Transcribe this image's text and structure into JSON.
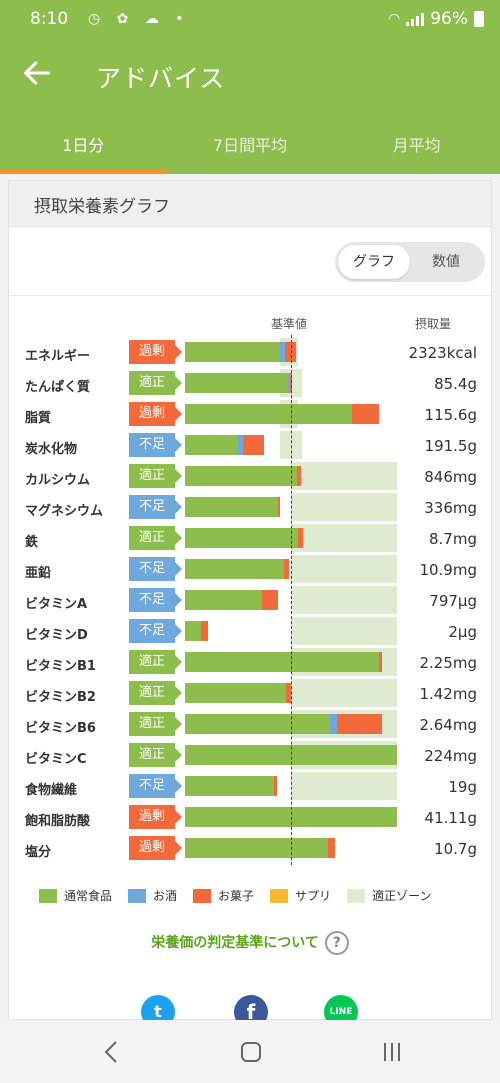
{
  "status_bar": {
    "time": "8:10",
    "battery": "96%"
  },
  "app_bar": {
    "title": "アドバイス"
  },
  "tabs": [
    {
      "label": "1日分",
      "active": true
    },
    {
      "label": "7日間平均",
      "active": false
    },
    {
      "label": "月平均",
      "active": false
    }
  ],
  "card": {
    "title": "摂取栄養素グラフ",
    "toggle": {
      "graph": "グラフ",
      "value": "数値",
      "selected": "graph"
    },
    "header_ref": "基準値",
    "header_amount": "摂取量"
  },
  "colors": {
    "food": "#8dbd4c",
    "drink": "#6fa8dc",
    "snack": "#f26a3c",
    "supplement": "#f7b733",
    "zone": "#dfebd0"
  },
  "nutrients": [
    {
      "name": "エネルギー",
      "status": "過剰",
      "level": "over",
      "amount": "2323kcal",
      "zone": [
        0.9,
        1.07
      ],
      "food": 0.9,
      "drink": 0.05,
      "snack": 0.1
    },
    {
      "name": "たんぱく質",
      "status": "適正",
      "level": "ok",
      "amount": "85.4g",
      "zone": [
        0.9,
        1.1
      ],
      "food": 0.97,
      "drink": 0.02,
      "snack": 0.02
    },
    {
      "name": "脂質",
      "status": "過剰",
      "level": "over",
      "amount": "115.6g",
      "zone": [
        0.9,
        1.07
      ],
      "food": 1.58,
      "drink": 0,
      "snack": 0.25
    },
    {
      "name": "炭水化物",
      "status": "不足",
      "level": "under",
      "amount": "191.5g",
      "zone": [
        0.9,
        1.1
      ],
      "food": 0.5,
      "drink": 0.05,
      "snack": 0.2
    },
    {
      "name": "カルシウム",
      "status": "適正",
      "level": "ok",
      "amount": "846mg",
      "zone": [
        1.0,
        2.0
      ],
      "food": 1.06,
      "drink": 0,
      "snack": 0.04
    },
    {
      "name": "マグネシウム",
      "status": "不足",
      "level": "under",
      "amount": "336mg",
      "zone": [
        1.0,
        2.0
      ],
      "food": 0.88,
      "drink": 0,
      "snack": 0.02
    },
    {
      "name": "鉄",
      "status": "適正",
      "level": "ok",
      "amount": "8.7mg",
      "zone": [
        1.0,
        2.0
      ],
      "food": 1.07,
      "drink": 0,
      "snack": 0.05
    },
    {
      "name": "亜鉛",
      "status": "不足",
      "level": "under",
      "amount": "10.9mg",
      "zone": [
        1.0,
        2.0
      ],
      "food": 0.93,
      "drink": 0,
      "snack": 0.05
    },
    {
      "name": "ビタミンA",
      "status": "不足",
      "level": "under",
      "amount": "797μg",
      "zone": [
        1.0,
        2.0
      ],
      "food": 0.73,
      "drink": 0,
      "snack": 0.15
    },
    {
      "name": "ビタミンD",
      "status": "不足",
      "level": "under",
      "amount": "2μg",
      "zone": [
        1.0,
        2.0
      ],
      "food": 0.15,
      "drink": 0,
      "snack": 0.07
    },
    {
      "name": "ビタミンB1",
      "status": "適正",
      "level": "ok",
      "amount": "2.25mg",
      "zone": [
        1.0,
        2.0
      ],
      "food": 1.83,
      "drink": 0,
      "snack": 0.03
    },
    {
      "name": "ビタミンB2",
      "status": "適正",
      "level": "ok",
      "amount": "1.42mg",
      "zone": [
        1.0,
        2.0
      ],
      "food": 0.95,
      "drink": 0,
      "snack": 0.05
    },
    {
      "name": "ビタミンB6",
      "status": "適正",
      "level": "ok",
      "amount": "2.64mg",
      "zone": [
        1.0,
        2.0
      ],
      "food": 1.37,
      "drink": 0.07,
      "snack": 0.42
    },
    {
      "name": "ビタミンC",
      "status": "適正",
      "level": "ok",
      "amount": "224mg",
      "zone": [
        1.0,
        2.0
      ],
      "food": 2.0,
      "drink": 0,
      "snack": 0
    },
    {
      "name": "食物繊維",
      "status": "不足",
      "level": "under",
      "amount": "19g",
      "zone": [
        1.0,
        2.0
      ],
      "food": 0.84,
      "drink": 0,
      "snack": 0.03
    },
    {
      "name": "飽和脂肪酸",
      "status": "過剰",
      "level": "over",
      "amount": "41.11g",
      "zone": [
        0,
        0
      ],
      "food": 2.0,
      "drink": 0,
      "snack": 0
    },
    {
      "name": "塩分",
      "status": "過剰",
      "level": "over",
      "amount": "10.7g",
      "zone": [
        0,
        0
      ],
      "food": 1.35,
      "drink": 0,
      "snack": 0.07
    }
  ],
  "legend": [
    {
      "label": "通常食品",
      "color": "#8dbd4c"
    },
    {
      "label": "お酒",
      "color": "#6fa8dc"
    },
    {
      "label": "お菓子",
      "color": "#f26a3c"
    },
    {
      "label": "サプリ",
      "color": "#f7b733"
    },
    {
      "label": "適正ゾーン",
      "color": "#dfebd0"
    }
  ],
  "criteria_link": "栄養価の判定基準について",
  "criteria_icon": "?",
  "share": [
    {
      "name": "twitter",
      "glyph": "t"
    },
    {
      "name": "facebook",
      "glyph": "f"
    },
    {
      "name": "line",
      "glyph": "LINE"
    }
  ]
}
